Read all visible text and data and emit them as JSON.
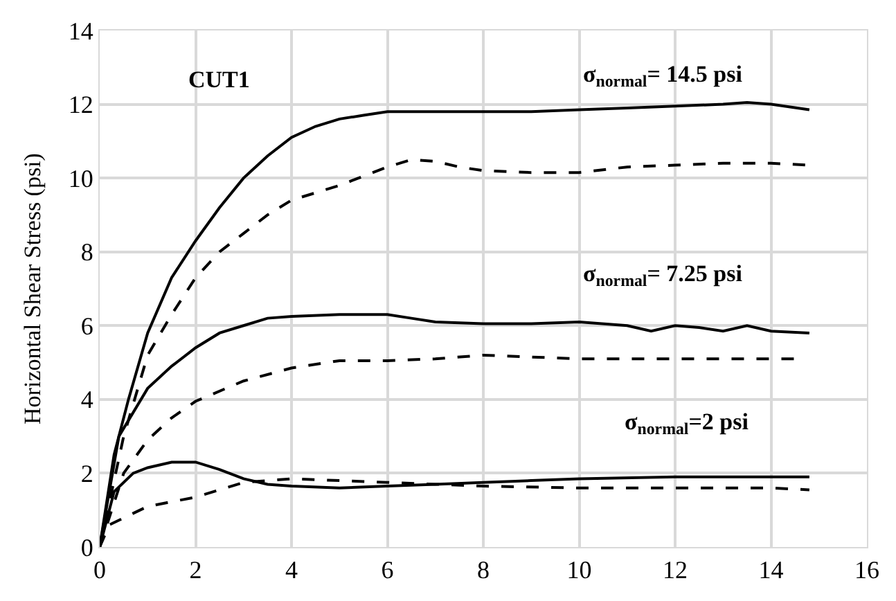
{
  "chart_data": {
    "type": "line",
    "ylabel": "Horizontal Shear Stress (psi)",
    "xlim": [
      0,
      16
    ],
    "ylim": [
      0,
      14
    ],
    "xticks": [
      0,
      2,
      4,
      6,
      8,
      10,
      12,
      14,
      16
    ],
    "yticks": [
      0,
      2,
      4,
      6,
      8,
      10,
      12,
      14
    ],
    "grid": true,
    "annotations": [
      "CUT1",
      "σ$_{normal}$= 14.5 psi",
      "σ$_{normal}$= 7.25 psi",
      "σ$_{normal}$=2 psi"
    ],
    "series": [
      {
        "color": "#000000",
        "line_style": "solid",
        "x": [
          0,
          0.3,
          0.6,
          1,
          1.5,
          2,
          2.5,
          3,
          3.5,
          4,
          4.5,
          5,
          5.5,
          6,
          6.5,
          7,
          8,
          9,
          10,
          11,
          12,
          13,
          13.5,
          14,
          14.8
        ],
        "values": [
          0,
          2.5,
          4,
          5.8,
          7.3,
          8.3,
          9.2,
          10,
          10.6,
          11.1,
          11.4,
          11.6,
          11.7,
          11.8,
          11.8,
          11.8,
          11.8,
          11.8,
          11.85,
          11.9,
          11.95,
          12,
          12.05,
          12,
          11.85
        ]
      },
      {
        "color": "#000000",
        "line_style": "dashed",
        "x": [
          0,
          0.5,
          1,
          1.5,
          2,
          2.5,
          3,
          3.5,
          4,
          5,
          6,
          6.5,
          7,
          7.5,
          8,
          9,
          10,
          11,
          12,
          13,
          14,
          14.8
        ],
        "values": [
          0,
          3,
          5.2,
          6.3,
          7.3,
          8,
          8.5,
          9,
          9.4,
          9.8,
          10.3,
          10.5,
          10.45,
          10.3,
          10.2,
          10.15,
          10.15,
          10.3,
          10.35,
          10.4,
          10.4,
          10.35
        ]
      },
      {
        "color": "#000000",
        "line_style": "solid",
        "x": [
          0,
          0.4,
          1,
          1.5,
          2,
          2.5,
          3,
          3.5,
          4,
          5,
          5.5,
          6,
          6.5,
          7,
          8,
          9,
          10,
          11,
          11.5,
          12,
          12.5,
          13,
          13.5,
          14,
          14.8
        ],
        "values": [
          0,
          3,
          4.3,
          4.9,
          5.4,
          5.8,
          6,
          6.2,
          6.25,
          6.3,
          6.3,
          6.3,
          6.2,
          6.1,
          6.05,
          6.05,
          6.1,
          6,
          5.85,
          6,
          5.95,
          5.85,
          6,
          5.85,
          5.8
        ]
      },
      {
        "color": "#000000",
        "line_style": "dashed",
        "x": [
          0,
          0.5,
          1,
          1.5,
          2,
          3,
          4,
          5,
          6,
          7,
          8,
          9,
          10,
          11,
          12,
          13,
          14.5
        ],
        "values": [
          0,
          2,
          2.9,
          3.5,
          3.95,
          4.5,
          4.85,
          5.05,
          5.05,
          5.1,
          5.2,
          5.15,
          5.1,
          5.1,
          5.1,
          5.1,
          5.1
        ]
      },
      {
        "color": "#000000",
        "line_style": "solid",
        "x": [
          0,
          0.3,
          0.7,
          1,
          1.5,
          2,
          2.5,
          3,
          3.5,
          4,
          5,
          6,
          7,
          8,
          9,
          10,
          12,
          14,
          14.8
        ],
        "values": [
          0,
          1.5,
          2,
          2.15,
          2.3,
          2.3,
          2.1,
          1.85,
          1.7,
          1.65,
          1.6,
          1.65,
          1.7,
          1.75,
          1.8,
          1.85,
          1.9,
          1.9,
          1.9
        ]
      },
      {
        "color": "#000000",
        "line_style": "dashed",
        "x": [
          0,
          0.2,
          1,
          2,
          2.5,
          3,
          4,
          5,
          6,
          7,
          8,
          10,
          12,
          14,
          14.8
        ],
        "values": [
          0,
          0.6,
          1.1,
          1.35,
          1.55,
          1.75,
          1.85,
          1.8,
          1.75,
          1.7,
          1.65,
          1.6,
          1.6,
          1.6,
          1.55
        ]
      }
    ]
  }
}
